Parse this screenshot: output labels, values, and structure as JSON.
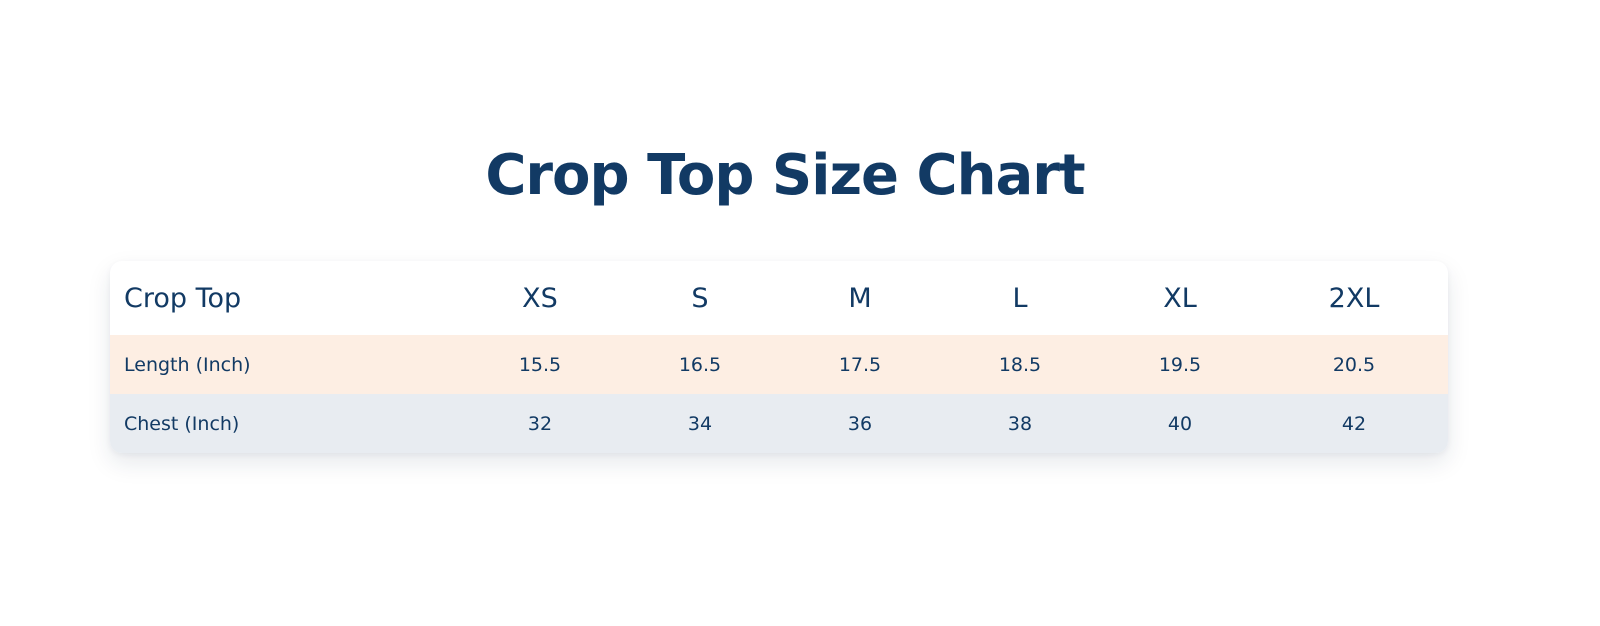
{
  "title": "Crop Top Size Chart",
  "table": {
    "header": [
      "Crop Top",
      "XS",
      "S",
      "M",
      "L",
      "XL",
      "2XL"
    ],
    "rows": [
      {
        "label": "Length (Inch)",
        "values": [
          "15.5",
          "16.5",
          "17.5",
          "18.5",
          "19.5",
          "20.5"
        ]
      },
      {
        "label": "Chest (Inch)",
        "values": [
          "32",
          "34",
          "36",
          "38",
          "40",
          "42"
        ]
      }
    ]
  },
  "colors": {
    "text": "#123a64",
    "row_length_bg": "#fdeee3",
    "row_chest_bg": "#e8ecf1",
    "header_bg": "#ffffff"
  }
}
